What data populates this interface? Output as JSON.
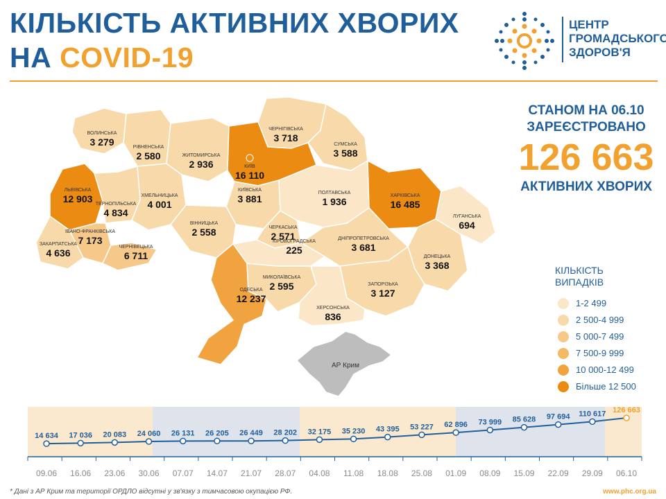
{
  "header": {
    "title_line1": "КІЛЬКІСТЬ АКТИВНИХ ХВОРИХ",
    "title_line2_prefix": "НА",
    "title_line2_accent": "COVID-19"
  },
  "logo": {
    "line1": "ЦЕНТР",
    "line2": "ГРОМАДСЬКОГО",
    "line3": "ЗДОРОВ'Я"
  },
  "summary": {
    "line1": "СТАНОМ НА 06.10",
    "line2": "ЗАРЕЄСТРОВАНО",
    "total": "126 663",
    "line3": "АКТИВНИХ ХВОРИХ"
  },
  "colors": {
    "brand_blue": "#1f5e9a",
    "brand_orange": "#f2a12f",
    "crimea_gray": "#bdbdbd"
  },
  "legend": {
    "title_line1": "КІЛЬКІСТЬ",
    "title_line2": "ВИПАДКІВ",
    "items": [
      {
        "label": "1-2 499",
        "color": "#fbe6c8"
      },
      {
        "label": "2 500-4 999",
        "color": "#f8d9a9"
      },
      {
        "label": "5 000-7 499",
        "color": "#f6c98b"
      },
      {
        "label": "7 500-9 999",
        "color": "#f4b965"
      },
      {
        "label": "10 000-12 499",
        "color": "#f0a33f"
      },
      {
        "label": "Більше 12 500",
        "color": "#eb8b12"
      }
    ]
  },
  "map": {
    "crimea_label": "АР Крим",
    "regions": [
      {
        "name": "ВОЛИНСЬКА",
        "value": "3 279",
        "color": "#f8d9a9"
      },
      {
        "name": "РІВНЕНСЬКА",
        "value": "2 580",
        "color": "#f8d9a9"
      },
      {
        "name": "ЖИТОМИРСЬКА",
        "value": "2 936",
        "color": "#f8d9a9"
      },
      {
        "name": "КИЇВ",
        "value": "16 110",
        "color": "#eb8b12"
      },
      {
        "name": "ЧЕРНІГІВСЬКА",
        "value": "3 718",
        "color": "#f8d9a9"
      },
      {
        "name": "СУМСЬКА",
        "value": "3 588",
        "color": "#f8d9a9"
      },
      {
        "name": "ЛЬВІВСЬКА",
        "value": "12 903",
        "color": "#eb8b12"
      },
      {
        "name": "ТЕРНОПІЛЬСЬКА",
        "value": "4 834",
        "color": "#f8d9a9"
      },
      {
        "name": "ХМЕЛЬНИЦЬКА",
        "value": "4 001",
        "color": "#f8d9a9"
      },
      {
        "name": "КИЇВСЬКА",
        "value": "3 881",
        "color": "#f8d9a9"
      },
      {
        "name": "ПОЛТАВСЬКА",
        "value": "1 936",
        "color": "#fbe6c8"
      },
      {
        "name": "ХАРКІВСЬКА",
        "value": "16 485",
        "color": "#eb8b12"
      },
      {
        "name": "ЛУГАНСЬКА",
        "value": "694",
        "color": "#fbe6c8"
      },
      {
        "name": "ЧЕРКАСЬКА",
        "value": "2 571",
        "color": "#f8d9a9"
      },
      {
        "name": "ВІННИЦЬКА",
        "value": "2 558",
        "color": "#f8d9a9"
      },
      {
        "name": "ІВАНО-ФРАНКІВСЬКА",
        "value": "7 173",
        "color": "#f6c98b"
      },
      {
        "name": "ЗАКАРПАТСЬКА",
        "value": "4 636",
        "color": "#f8d9a9"
      },
      {
        "name": "ЧЕРНІВЕЦЬКА",
        "value": "6 711",
        "color": "#f6c98b"
      },
      {
        "name": "КІРОВОГРАДСЬКА",
        "value": "225",
        "color": "#fbe6c8"
      },
      {
        "name": "ДНІПРОПЕТРОВСЬКА",
        "value": "3 681",
        "color": "#f8d9a9"
      },
      {
        "name": "ДОНЕЦЬКА",
        "value": "3 368",
        "color": "#f8d9a9"
      },
      {
        "name": "ОДЕСЬКА",
        "value": "12 237",
        "color": "#f0a33f"
      },
      {
        "name": "МИКОЛАЇВСЬКА",
        "value": "2 595",
        "color": "#f8d9a9"
      },
      {
        "name": "ЗАПОРІЗЬКА",
        "value": "3 127",
        "color": "#f8d9a9"
      },
      {
        "name": "ХЕРСОНСЬКА",
        "value": "836",
        "color": "#fbe6c8"
      }
    ]
  },
  "chart_data": {
    "type": "line",
    "x": [
      "09.06",
      "16.06",
      "23.06",
      "30.06",
      "07.07",
      "14.07",
      "21.07",
      "28.07",
      "04.08",
      "11.08",
      "18.08",
      "25.08",
      "01.09",
      "08.09",
      "15.09",
      "22.09",
      "29.09",
      "06.10"
    ],
    "series": [
      {
        "values": [
          14634,
          17036,
          20083,
          24060,
          26131,
          26205,
          26449,
          28202,
          32175,
          35230,
          43395,
          53227,
          62896,
          73999,
          85628,
          97694,
          110617,
          126663
        ],
        "labels": [
          "14 634",
          "17 036",
          "20 083",
          "24 060",
          "26 131",
          "26 205",
          "26 449",
          "28 202",
          "32 175",
          "35 230",
          "43 395",
          "53 227",
          "62 896",
          "73 999",
          "85 628",
          "97 694",
          "110 617",
          "126 663"
        ]
      }
    ],
    "month_bands": [
      "#fbe9cf",
      "#dfe4ec",
      "#fbe9cf",
      "#dfe4ec",
      "#fbe9cf"
    ],
    "grid": false,
    "legend": "none"
  },
  "footer": {
    "note": "* Дані з АР Крим та території ОРДЛО відсутні у зв'язку з тимчасовою окупацією РФ.",
    "site": "www.phc.org.ua"
  }
}
